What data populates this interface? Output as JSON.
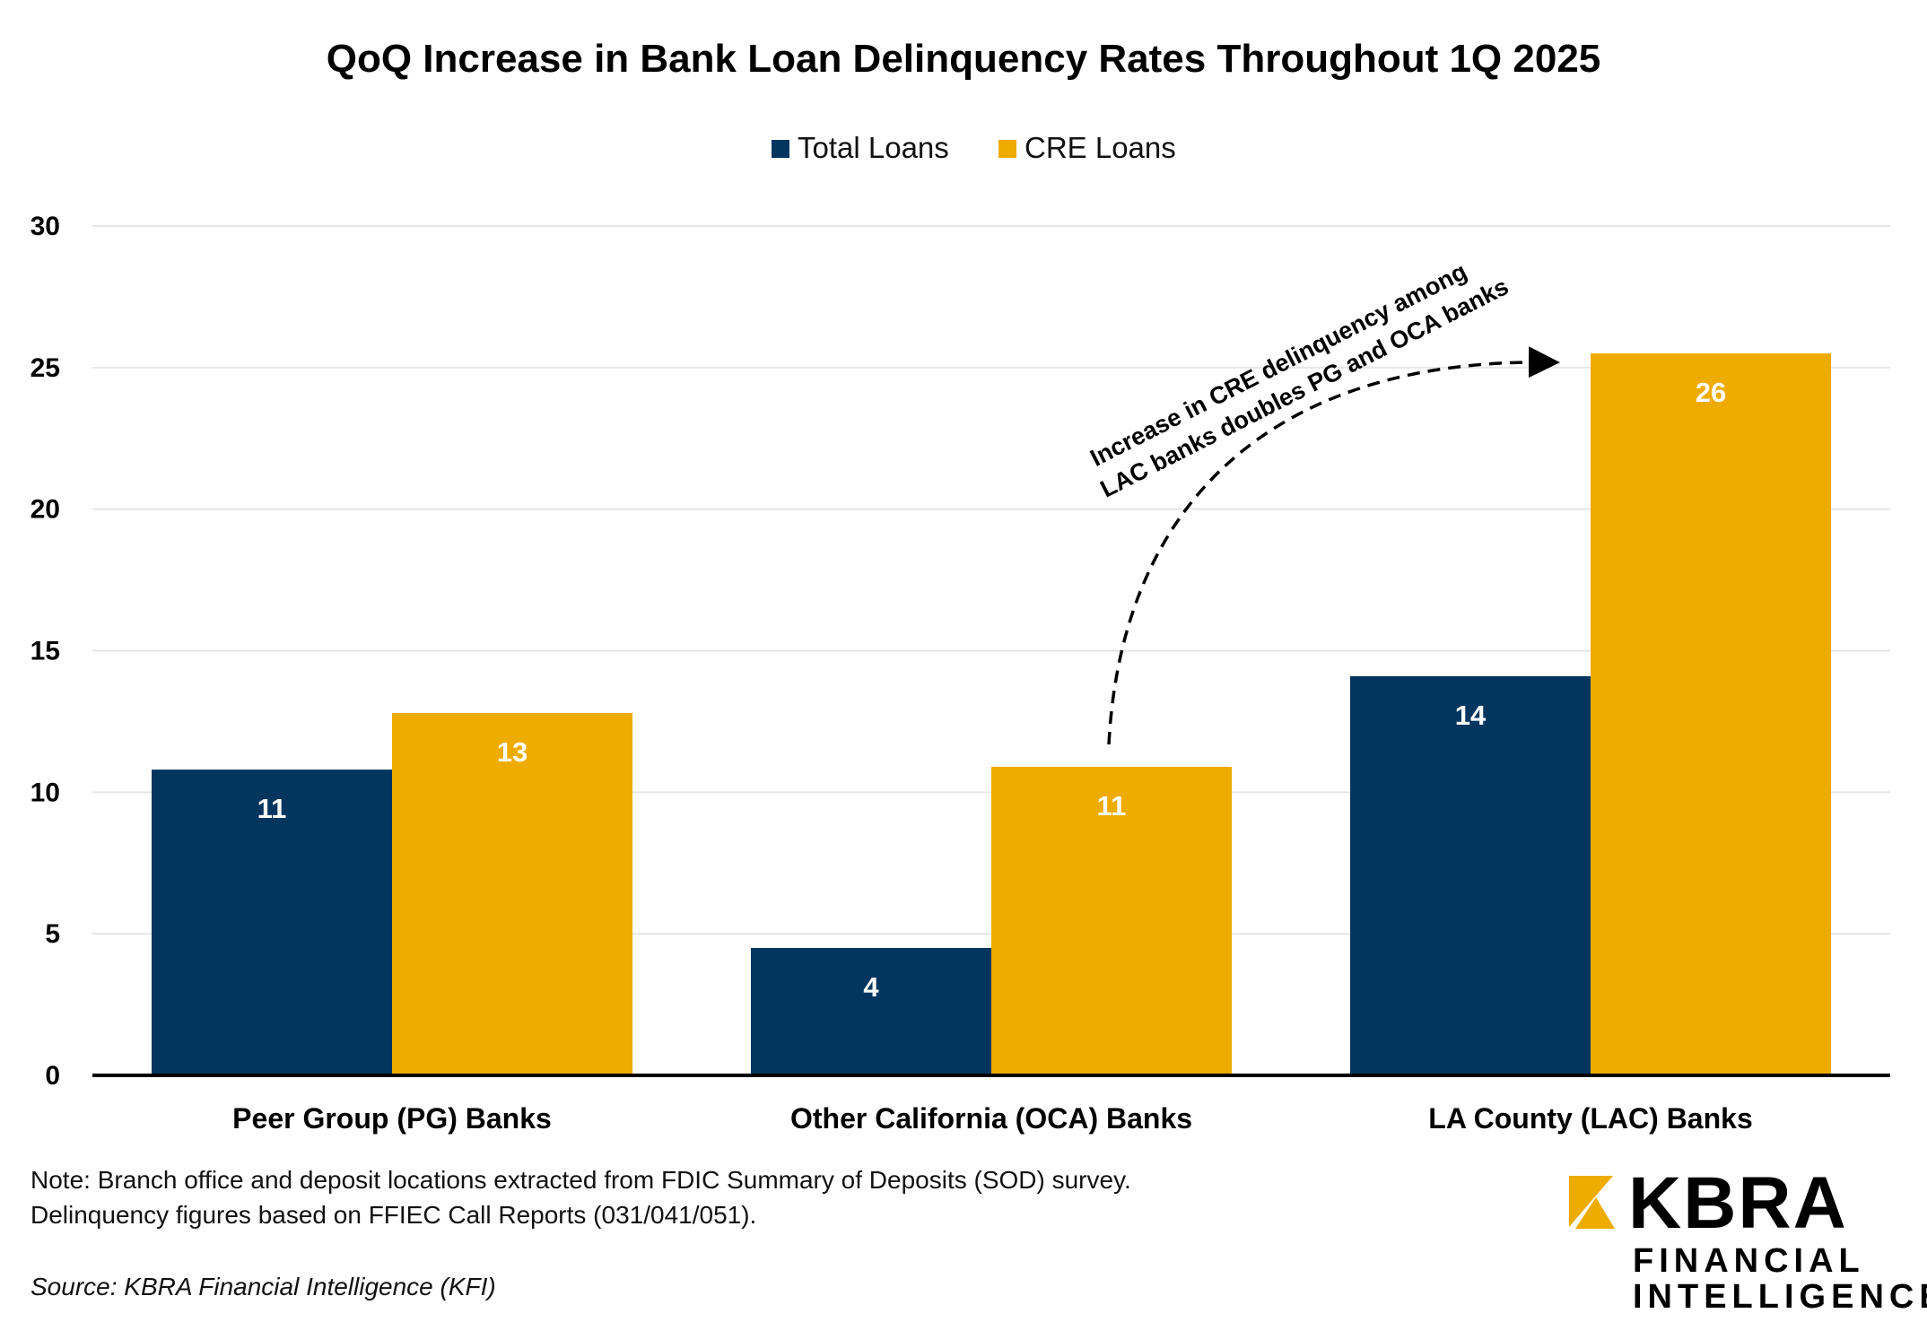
{
  "chart_data": {
    "type": "bar",
    "title": "QoQ Increase in Bank Loan Delinquency Rates Throughout 1Q 2025",
    "categories": [
      "Peer Group (PG) Banks",
      "Other California (OCA) Banks",
      "LA County (LAC) Banks"
    ],
    "series": [
      {
        "name": "Total Loans",
        "color": "#03365F",
        "values": [
          10.8,
          4.5,
          14.1
        ],
        "labels": [
          "11",
          "4",
          "14"
        ]
      },
      {
        "name": "CRE Loans",
        "color": "#EEAB00",
        "values": [
          12.8,
          10.9,
          25.5
        ],
        "labels": [
          "13",
          "11",
          "26"
        ]
      }
    ],
    "xlabel": "",
    "ylabel": "",
    "ylim": [
      0,
      30
    ],
    "yticks": [
      "0",
      "5",
      "10",
      "15",
      "20",
      "25",
      "30"
    ],
    "grid": true,
    "legend_position": "top-center",
    "annotation": {
      "line1": "Increase in CRE delinquency among",
      "line2": "LAC banks doubles PG and OCA banks"
    }
  },
  "notes": {
    "line1": "Note: Branch office and deposit locations extracted from FDIC Summary of Deposits (SOD) survey.",
    "line2": "Delinquency figures based on FFIEC Call Reports (031/041/051).",
    "source": "Source: KBRA Financial Intelligence (KFI)"
  },
  "logo": {
    "name": "KBRA",
    "line1": "FINANCIAL",
    "line2": "INTELLIGENCE",
    "accent": "#EEAB00"
  }
}
